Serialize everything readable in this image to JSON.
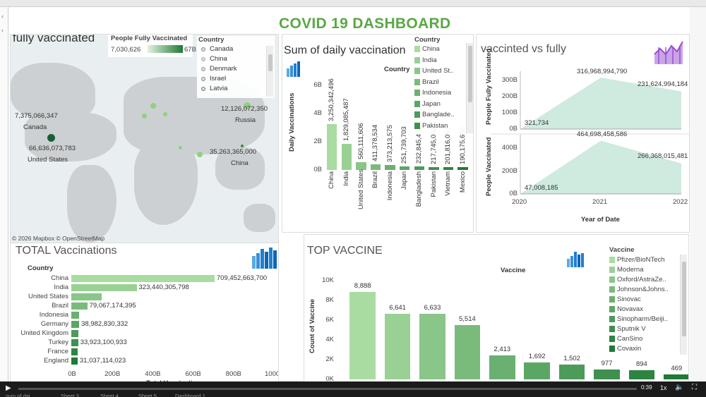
{
  "dashboard_title": "COVID 19 DASHBOARD",
  "map_panel": {
    "title": "fully vaccinated",
    "legend_title": "People Fully Vaccinated",
    "legend_min": "7,030,626",
    "legend_max": "67B",
    "country_legend_title": "Country",
    "country_legend": [
      "Canada",
      "China",
      "Denmark",
      "Israel",
      "Latvia"
    ],
    "labels": [
      {
        "value": "7,375,066,347",
        "name": "Canada"
      },
      {
        "value": "66,636,073,783",
        "name": "United States"
      },
      {
        "value": "12,126,072,350",
        "name": "Russia"
      },
      {
        "value": "35,263,365,000",
        "name": "China"
      }
    ],
    "copyright": "© 2026 Mapbox © OpenStreetMap"
  },
  "daily_panel": {
    "title": "Sum of daily vaccination",
    "x_header": "Country",
    "ylabel": "Daily Vaccinations",
    "legend_title": "Country",
    "legend": [
      "China",
      "India",
      "United St..",
      "Brazil",
      "Indonesia",
      "Japan",
      "Banglade..",
      "Pakistan"
    ]
  },
  "vvf_panel": {
    "title": "vaccinted vs fully",
    "top_ylabel": "People Fully Vaccinated",
    "bottom_ylabel": "People Vaccinated",
    "xlabel": "Year of Date"
  },
  "total_panel": {
    "title": "TOTAL Vaccinations",
    "y_header": "Country",
    "xlabel": "Total Vaccinations"
  },
  "top_panel": {
    "title": "TOP VACCINE",
    "x_header": "Vaccine",
    "ylabel": "Count of Vaccine",
    "legend_title": "Vaccine",
    "legend": [
      "Pfizer/BioNTech",
      "Moderna",
      "Oxford/AstraZe..",
      "Johnson&Johns..",
      "Sinovac",
      "Novavax",
      "Sinopharm/Beiji..",
      "Sputnik V",
      "CanSino",
      "Covaxin"
    ]
  },
  "player": {
    "time": "0:39",
    "speed": "1x",
    "progress": 0.0,
    "tabs": [
      "sum of dai..",
      "Sheet 3",
      "Sheet 4",
      "Sheet 5",
      "Dashboard 1"
    ]
  },
  "colors": {
    "title_green": "#5aa845",
    "bar_light": "#a8dca0",
    "bar_dark": "#1e7a35",
    "area": "#cfeadf"
  },
  "chart_data": [
    {
      "type": "bar",
      "title": "Sum of daily vaccination",
      "xlabel": "Country",
      "ylabel": "Daily Vaccinations",
      "categories": [
        "China",
        "India",
        "United States",
        "Brazil",
        "Indonesia",
        "Japan",
        "Bangladesh",
        "Pakistan",
        "Vietnam",
        "Mexico"
      ],
      "values": [
        3250342496,
        1829085487,
        560111606,
        411378534,
        373213575,
        251739703,
        232845439,
        217745032,
        201816053,
        190175636
      ],
      "value_labels": [
        "3,250,342,496",
        "1,829,085,487",
        "560,111,606",
        "411,378,534",
        "373,213,575",
        "251,739,703",
        "232,845,439",
        "217,745,032",
        "201,816,053",
        "190,175,636"
      ],
      "yticks": [
        "0B",
        "2B",
        "4B",
        "6B"
      ],
      "ylim": [
        0,
        6500000000
      ]
    },
    {
      "type": "area",
      "title": "vaccinted vs fully",
      "xlabel": "Year of Date",
      "xticks": [
        "2020",
        "2021",
        "2022"
      ],
      "series": [
        {
          "name": "People Fully Vaccinated",
          "x": [
            "2020",
            "2021",
            "2022"
          ],
          "values": [
            321734,
            316968994790,
            231624994184
          ],
          "value_labels": [
            "321,734",
            "316,968,994,790",
            "231,624,994,184"
          ],
          "yticks": [
            "0B",
            "100B",
            "200B",
            "300B"
          ],
          "ylim": [
            0,
            330000000000
          ]
        },
        {
          "name": "People Vaccinated",
          "x": [
            "2020",
            "2021",
            "2022"
          ],
          "values": [
            47008185,
            464698458586,
            266368015481
          ],
          "value_labels": [
            "47,008,185",
            "464,698,458,586",
            "266,368,015,481"
          ],
          "yticks": [
            "0B",
            "200B",
            "400B"
          ],
          "ylim": [
            0,
            480000000000
          ]
        }
      ]
    },
    {
      "type": "bar",
      "orientation": "horizontal",
      "title": "TOTAL Vaccinations",
      "xlabel": "Total Vaccinations",
      "ylabel": "Country",
      "categories": [
        "China",
        "India",
        "United States",
        "Brazil",
        "Indonesia",
        "Germany",
        "United Kingdom",
        "Turkey",
        "France",
        "England"
      ],
      "values": [
        709452663700,
        323440305798,
        150000000000,
        79067174395,
        40000000000,
        38982830332,
        35000000000,
        33923100933,
        32000000000,
        31037114023
      ],
      "value_labels": [
        "709,452,663,700",
        "323,440,305,798",
        "",
        "79,067,174,395",
        "",
        "38,982,830,332",
        "",
        "33,923,100,933",
        "",
        "31,037,114,023"
      ],
      "xticks": [
        "0B",
        "200B",
        "400B",
        "600B",
        "800B",
        "1000B"
      ],
      "xlim": [
        0,
        1000000000000
      ]
    },
    {
      "type": "bar",
      "title": "TOP VACCINE",
      "xlabel": "Vaccine",
      "ylabel": "Count of Vaccine",
      "categories": [
        "Pfizer/Bi..",
        "Moderna",
        "Oxford/A..",
        "Johnson..",
        "Sinovac",
        "Novavax",
        "Sinophar..",
        "Sputnik V",
        "CanSino",
        "Covaxin"
      ],
      "values": [
        8888,
        6641,
        6633,
        5514,
        2413,
        1692,
        1502,
        977,
        894,
        469
      ],
      "value_labels": [
        "8,888",
        "6,641",
        "6,633",
        "5,514",
        "2,413",
        "1,692",
        "1,502",
        "977",
        "894",
        "469"
      ],
      "yticks": [
        "0K",
        "2K",
        "4K",
        "6K",
        "8K",
        "10K"
      ],
      "ylim": [
        0,
        10000
      ]
    }
  ]
}
